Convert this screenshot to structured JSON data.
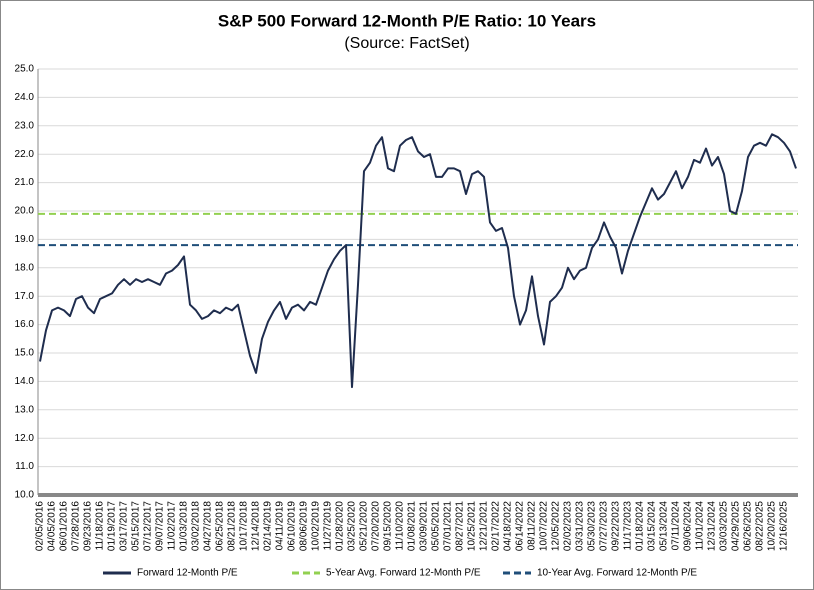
{
  "chart_data": {
    "type": "line",
    "title": "S&P 500 Forward 12-Month P/E Ratio: 10 Years",
    "subtitle": "(Source: FactSet)",
    "categories": [
      "02/05/2016",
      null,
      "04/05/2016",
      null,
      "06/01/2016",
      null,
      "07/28/2016",
      null,
      "09/23/2016",
      null,
      "11/18/2016",
      null,
      "01/19/2017",
      null,
      "03/17/2017",
      null,
      "05/15/2017",
      null,
      "07/12/2017",
      null,
      "09/07/2017",
      null,
      "11/02/2017",
      null,
      "01/03/2018",
      null,
      "03/02/2018",
      null,
      "04/27/2018",
      null,
      "06/25/2018",
      null,
      "08/21/2018",
      null,
      "10/17/2018",
      null,
      "12/14/2018",
      null,
      "02/14/2019",
      null,
      "04/11/2019",
      null,
      "06/10/2019",
      null,
      "08/06/2019",
      null,
      "10/02/2019",
      null,
      "11/27/2019",
      null,
      "01/28/2020",
      null,
      "03/25/2020",
      null,
      "05/21/2020",
      null,
      "07/20/2020",
      null,
      "09/15/2020",
      null,
      "11/10/2020",
      null,
      "01/08/2021",
      null,
      "03/09/2021",
      null,
      "05/05/2021",
      null,
      "07/01/2021",
      null,
      "08/27/2021",
      null,
      "10/25/2021",
      null,
      "12/21/2021",
      null,
      "02/17/2022",
      null,
      "04/18/2022",
      null,
      "06/14/2022",
      null,
      "08/11/2022",
      null,
      "10/07/2022",
      null,
      "12/05/2022",
      null,
      "02/02/2023",
      null,
      "03/31/2023",
      null,
      "05/30/2023",
      null,
      "07/27/2023",
      null,
      "09/22/2023",
      null,
      "11/17/2023",
      null,
      "01/18/2024",
      null,
      "03/15/2024",
      null,
      "05/13/2024",
      null,
      "07/11/2024",
      null,
      "09/06/2024",
      null,
      "11/01/2024",
      null,
      "12/31/2024",
      null,
      "03/03/2025",
      null,
      "04/29/2025",
      null,
      "06/26/2025",
      null,
      "08/22/2025",
      null,
      "10/20/2025",
      null,
      "12/16/2025",
      null,
      null
    ],
    "series": [
      {
        "name": "Forward 12-Month P/E",
        "color": "#1f2d4e",
        "values": [
          14.7,
          15.8,
          16.5,
          16.6,
          16.5,
          16.3,
          16.9,
          17.0,
          16.6,
          16.4,
          16.9,
          17.0,
          17.1,
          17.4,
          17.6,
          17.4,
          17.6,
          17.5,
          17.6,
          17.5,
          17.4,
          17.8,
          17.9,
          18.1,
          18.4,
          16.7,
          16.5,
          16.2,
          16.3,
          16.5,
          16.4,
          16.6,
          16.5,
          16.7,
          15.8,
          14.9,
          14.3,
          15.5,
          16.1,
          16.5,
          16.8,
          16.2,
          16.6,
          16.7,
          16.5,
          16.8,
          16.7,
          17.3,
          17.9,
          18.3,
          18.6,
          18.8,
          13.8,
          17.4,
          21.4,
          21.7,
          22.3,
          22.6,
          21.5,
          21.4,
          22.3,
          22.5,
          22.6,
          22.1,
          21.9,
          22.0,
          21.2,
          21.2,
          21.5,
          21.5,
          21.4,
          20.6,
          21.3,
          21.4,
          21.2,
          19.6,
          19.3,
          19.4,
          18.7,
          17.0,
          16.0,
          16.5,
          17.7,
          16.3,
          15.3,
          16.8,
          17.0,
          17.3,
          18.0,
          17.6,
          17.9,
          18.0,
          18.7,
          19.0,
          19.6,
          19.1,
          18.7,
          17.8,
          18.6,
          19.2,
          19.8,
          20.3,
          20.8,
          20.4,
          20.6,
          21.0,
          21.4,
          20.8,
          21.2,
          21.8,
          21.7,
          22.2,
          21.6,
          21.9,
          21.3,
          20.0,
          19.9,
          20.7,
          21.9,
          22.3,
          22.4,
          22.3,
          22.7,
          22.6,
          22.4,
          22.1,
          21.5
        ]
      }
    ],
    "reference_lines": [
      {
        "name": "5-Year Avg. Forward 12-Month P/E",
        "color": "#92d050",
        "value": 19.9
      },
      {
        "name": "10-Year Avg. Forward 12-Month P/E",
        "color": "#1f4e79",
        "value": 18.8
      }
    ],
    "ylim": [
      10,
      25
    ],
    "yticks": [
      {
        "value": 10,
        "label": "10.0"
      },
      {
        "value": 11,
        "label": "11.0"
      },
      {
        "value": 12,
        "label": "12.0"
      },
      {
        "value": 13,
        "label": "13.0"
      },
      {
        "value": 14,
        "label": "14.0"
      },
      {
        "value": 15,
        "label": "15.0"
      },
      {
        "value": 16,
        "label": "16.0"
      },
      {
        "value": 17,
        "label": "17.0"
      },
      {
        "value": 18,
        "label": "18.0"
      },
      {
        "value": 19,
        "label": "19.0"
      },
      {
        "value": 20,
        "label": "20.0"
      },
      {
        "value": 21,
        "label": "21.0"
      },
      {
        "value": 22,
        "label": "22.0"
      },
      {
        "value": 23,
        "label": "23.0"
      },
      {
        "value": 24,
        "label": "24.0"
      },
      {
        "value": 25,
        "label": "25.0"
      }
    ],
    "grid": true
  }
}
